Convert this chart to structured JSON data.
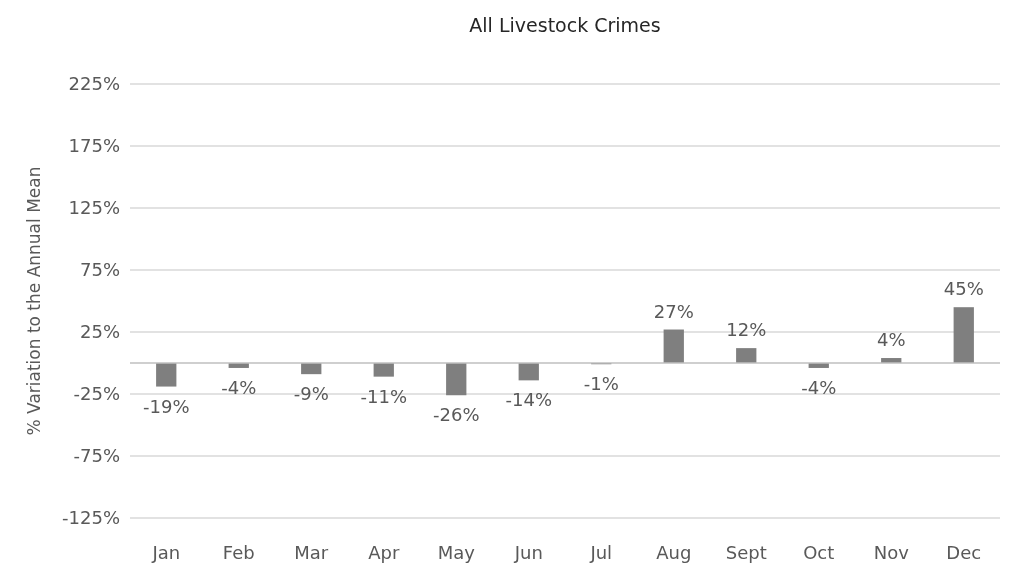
{
  "chart_data": {
    "type": "bar",
    "title": "All Livestock Crimes",
    "ylabel": "% Variation to the Annual Mean",
    "categories": [
      "Jan",
      "Feb",
      "Mar",
      "Apr",
      "May",
      "Jun",
      "Jul",
      "Aug",
      "Sept",
      "Oct",
      "Nov",
      "Dec"
    ],
    "values": [
      -19,
      -4,
      -9,
      -11,
      -26,
      -14,
      -1,
      27,
      12,
      -4,
      4,
      45
    ],
    "value_labels": [
      "-19%",
      "-4%",
      "-9%",
      "-11%",
      "-26%",
      "-14%",
      "-1%",
      "27%",
      "12%",
      "-4%",
      "4%",
      "45%"
    ],
    "color": "#7f7f7f",
    "ylim": [
      -125,
      225
    ],
    "yticks": [
      {
        "value": -125,
        "label": "-125%"
      },
      {
        "value": -75,
        "label": "-75%"
      },
      {
        "value": -25,
        "label": "-25%"
      },
      {
        "value": 25,
        "label": "25%"
      },
      {
        "value": 75,
        "label": "75%"
      },
      {
        "value": 125,
        "label": "125%"
      },
      {
        "value": 175,
        "label": "175%"
      },
      {
        "value": 225,
        "label": "225%"
      }
    ],
    "grid": "y"
  }
}
